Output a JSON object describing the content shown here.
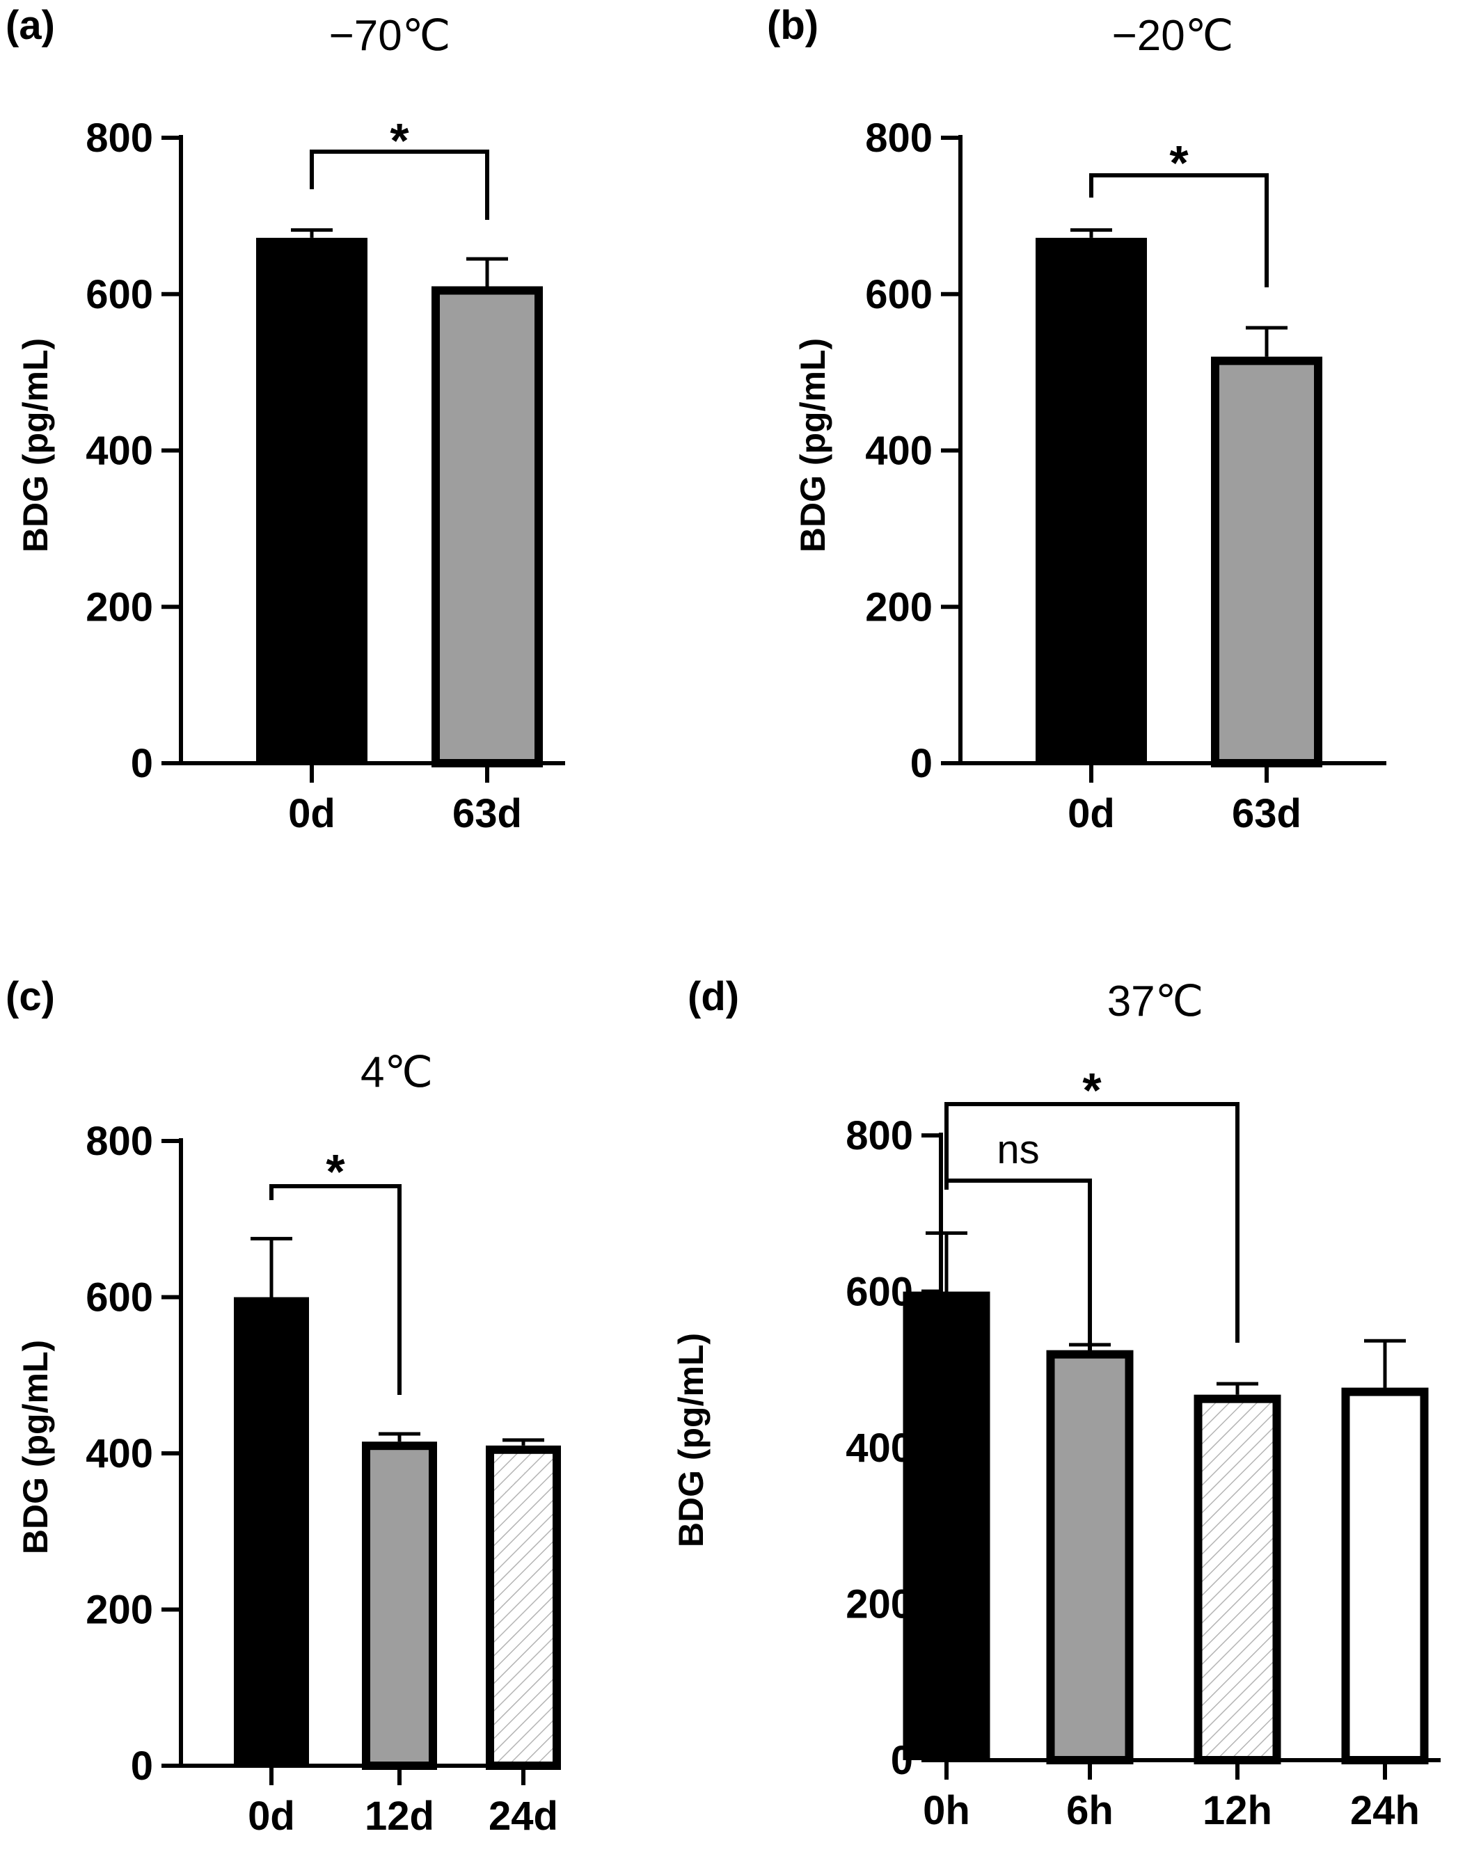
{
  "chart_data": [
    {
      "panel": "(a)",
      "type": "bar",
      "title": "−70℃",
      "ylabel": "BDG  (pg/mL)",
      "ylim": [
        0,
        800
      ],
      "yticks": [
        "0",
        "200",
        "400",
        "600",
        "800"
      ],
      "categories": [
        "0d",
        "63d"
      ],
      "values": [
        672,
        610
      ],
      "errors": [
        10,
        35
      ],
      "fills": [
        "solid-black",
        "gray"
      ],
      "comparisons": [
        {
          "from": "0d",
          "to": "63d",
          "label": "*"
        }
      ]
    },
    {
      "panel": "(b)",
      "type": "bar",
      "title": "−20℃",
      "ylabel": "BDG  (pg/mL)",
      "ylim": [
        0,
        800
      ],
      "yticks": [
        "0",
        "200",
        "400",
        "600",
        "800"
      ],
      "categories": [
        "0d",
        "63d"
      ],
      "values": [
        672,
        520
      ],
      "errors": [
        10,
        37
      ],
      "fills": [
        "solid-black",
        "gray"
      ],
      "comparisons": [
        {
          "from": "0d",
          "to": "63d",
          "label": "*"
        }
      ]
    },
    {
      "panel": "(c)",
      "type": "bar",
      "title": "4℃",
      "ylabel": "BDG  (pg/mL)",
      "ylim": [
        0,
        800
      ],
      "yticks": [
        "0",
        "200",
        "400",
        "600",
        "800"
      ],
      "categories": [
        "0d",
        "12d",
        "24d"
      ],
      "values": [
        600,
        415,
        410
      ],
      "errors": [
        75,
        10,
        7
      ],
      "fills": [
        "solid-black",
        "gray",
        "hatched"
      ],
      "comparisons": [
        {
          "from": "0d",
          "to": "12d",
          "label": "*"
        }
      ]
    },
    {
      "panel": "(d)",
      "type": "bar",
      "title": "37℃",
      "ylabel": "BDG  (pg/mL)",
      "ylim": [
        0,
        800
      ],
      "yticks": [
        "0",
        "200",
        "400",
        "600",
        "800"
      ],
      "categories": [
        "0h",
        "6h",
        "12h",
        "24h"
      ],
      "values": [
        600,
        525,
        468,
        477
      ],
      "errors": [
        75,
        7,
        14,
        60
      ],
      "fills": [
        "solid-black",
        "gray",
        "hatched",
        "white"
      ],
      "comparisons": [
        {
          "from": "0h",
          "to": "6h",
          "label": "ns"
        },
        {
          "from": "0h",
          "to": "12h",
          "label": "*"
        }
      ]
    }
  ],
  "colors": {
    "black": "#000000",
    "gray": "#9e9e9e",
    "hatch": "#b4b4b4",
    "white": "#ffffff"
  }
}
